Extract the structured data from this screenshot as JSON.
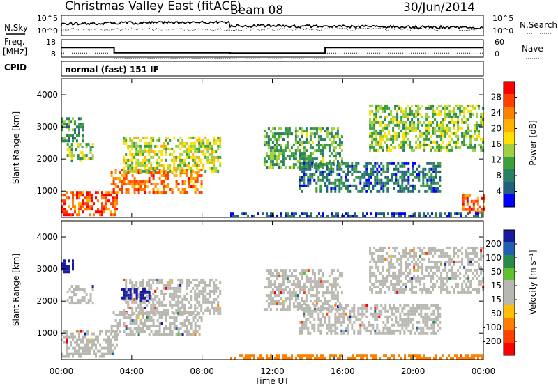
{
  "header": {
    "title": "Christmas Valley East (fitACF)",
    "beam": "Beam 08",
    "date": "30/Jun/2014"
  },
  "noise_panel": {
    "label": "N.Sky",
    "right_label": "N.Search",
    "left_ticks": [
      "10^5",
      "10^0"
    ],
    "right_ticks": [
      "10^5",
      "10^0"
    ]
  },
  "freq_panel": {
    "label_line1": "Freq.",
    "label_line2": "[MHz]",
    "right_label": "Nave",
    "left_ticks": [
      "18",
      "8"
    ],
    "right_ticks": [
      "60",
      "0"
    ]
  },
  "cpid": {
    "label": "CPID",
    "value": "normal (fast) 151 IF"
  },
  "power_colorbar": {
    "label": "Power [dB]",
    "ticks": [
      "28",
      "24",
      "20",
      "16",
      "12",
      "8",
      "4"
    ],
    "colors": [
      "#ff0000",
      "#ff4000",
      "#ff8000",
      "#ffb000",
      "#ffe000",
      "#a0d040",
      "#3aa03a",
      "#2a8060",
      "#206080",
      "#0000ff"
    ]
  },
  "velocity_colorbar": {
    "label": "Velocity [m s⁻¹]",
    "ticks": [
      "200",
      "100",
      "50",
      "15",
      "-15",
      "-50",
      "-100",
      "-200"
    ],
    "colors": [
      "#1a1aa0",
      "#2060b0",
      "#2a8a4a",
      "#60c030",
      "#b8b8b0",
      "#b8b8b0",
      "#ffc000",
      "#ff8000",
      "#ff4000",
      "#ff0000"
    ]
  },
  "chart_data": {
    "type": "heatmap",
    "xlabel": "Time UT",
    "ylabel": "Slant Range [km]",
    "x_ticks": [
      "00:00",
      "04:00",
      "08:00",
      "12:00",
      "16:00",
      "20:00",
      "00:00"
    ],
    "y_ticks": [
      "1000",
      "2000",
      "3000",
      "4000"
    ],
    "xlim_hours": [
      0,
      24
    ],
    "ylim_km": [
      180,
      4500
    ],
    "freq_mhz": [
      {
        "from_h": 0,
        "to_h": 3.0,
        "value": 13.5
      },
      {
        "from_h": 3.0,
        "to_h": 9.6,
        "value": 10.5
      },
      {
        "from_h": 9.6,
        "to_h": 15.0,
        "value": 10.3
      },
      {
        "from_h": 15.0,
        "to_h": 24.0,
        "value": 13.5
      }
    ],
    "power_regions": [
      {
        "t0": 0.0,
        "t1": 3.2,
        "r0": 300,
        "r1": 1000,
        "db": 26
      },
      {
        "t0": 2.8,
        "t1": 8.0,
        "r0": 1000,
        "r1": 1700,
        "db": 24
      },
      {
        "t0": 3.5,
        "t1": 9.0,
        "r0": 1600,
        "r1": 2700,
        "db": 16
      },
      {
        "t0": 0.3,
        "t1": 1.8,
        "r0": 1900,
        "r1": 2500,
        "db": 14
      },
      {
        "t0": 0.0,
        "t1": 1.2,
        "r0": 2600,
        "r1": 3300,
        "db": 10
      },
      {
        "t0": 11.5,
        "t1": 16.0,
        "r0": 1700,
        "r1": 3000,
        "db": 12
      },
      {
        "t0": 13.5,
        "t1": 21.5,
        "r0": 1000,
        "r1": 1900,
        "db": 8
      },
      {
        "t0": 17.5,
        "t1": 24.0,
        "r0": 2300,
        "r1": 3700,
        "db": 14
      },
      {
        "t0": 22.8,
        "t1": 24.0,
        "r0": 300,
        "r1": 900,
        "db": 26
      },
      {
        "t0": 9.6,
        "t1": 24.0,
        "r0": 180,
        "r1": 350,
        "db": 6
      }
    ],
    "velocity_regions": [
      {
        "t0": 0.0,
        "t1": 3.2,
        "r0": 300,
        "r1": 1100,
        "v": 0
      },
      {
        "t0": 2.8,
        "t1": 8.0,
        "r0": 1000,
        "r1": 1700,
        "v": 0
      },
      {
        "t0": 3.5,
        "t1": 9.0,
        "r0": 1600,
        "r1": 2700,
        "v": 0
      },
      {
        "t0": 0.3,
        "t1": 1.8,
        "r0": 1900,
        "r1": 2500,
        "v": 0
      },
      {
        "t0": 0.0,
        "t1": 0.6,
        "r0": 2900,
        "r1": 3300,
        "v": 220
      },
      {
        "t0": 3.4,
        "t1": 5.0,
        "r0": 2000,
        "r1": 2400,
        "v": 220
      },
      {
        "t0": 11.5,
        "t1": 16.0,
        "r0": 1700,
        "r1": 3000,
        "v": 0
      },
      {
        "t0": 13.5,
        "t1": 21.5,
        "r0": 1000,
        "r1": 1900,
        "v": 0
      },
      {
        "t0": 17.5,
        "t1": 24.0,
        "r0": 2300,
        "r1": 3700,
        "v": 0
      },
      {
        "t0": 9.6,
        "t1": 24.0,
        "r0": 180,
        "r1": 350,
        "v": -60
      }
    ]
  }
}
